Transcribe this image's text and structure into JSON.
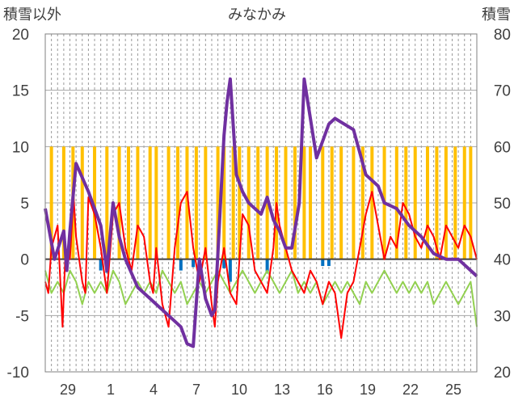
{
  "chart_data": {
    "type": "line",
    "title": "みなかみ",
    "left_axis_label": "積雪以外",
    "right_axis_label": "積雪",
    "ylim_left": [
      -10,
      20
    ],
    "ylim_right": [
      20,
      80
    ],
    "y_ticks_left": [
      "20",
      "15",
      "10",
      "5",
      "0",
      "-5",
      "-10"
    ],
    "y_ticks_right": [
      "80",
      "70",
      "60",
      "50",
      "40",
      "30",
      "20"
    ],
    "x_tick_labels": [
      "29",
      "1",
      "4",
      "7",
      "10",
      "13",
      "16",
      "19",
      "22",
      "25"
    ],
    "grid": "horizontal solid, vertical dashed daily",
    "colors": {
      "snow_depth": "#7030a0",
      "temp_max": "#ff0000",
      "temp_min": "#92d050",
      "precip_bars": "#ffc000",
      "snowfall_neg_bars": "#0070c0"
    },
    "series": [
      {
        "key": "snow_depth",
        "axis": "right",
        "points": [
          [
            0,
            49
          ],
          [
            1.5,
            40
          ],
          [
            3,
            45
          ],
          [
            3.5,
            38
          ],
          [
            4,
            45
          ],
          [
            5,
            57
          ],
          [
            7,
            52
          ],
          [
            9,
            46
          ],
          [
            10,
            38
          ],
          [
            11,
            50
          ],
          [
            12,
            44
          ],
          [
            13,
            40
          ],
          [
            15,
            35
          ],
          [
            17,
            33
          ],
          [
            18,
            32
          ],
          [
            20,
            30
          ],
          [
            22,
            28
          ],
          [
            23,
            25
          ],
          [
            24,
            24.5
          ],
          [
            25,
            40
          ],
          [
            26,
            33
          ],
          [
            27,
            30
          ],
          [
            27.5,
            31
          ],
          [
            28,
            41
          ],
          [
            29,
            62
          ],
          [
            29.5,
            68
          ],
          [
            30,
            72
          ],
          [
            31,
            55
          ],
          [
            32,
            52
          ],
          [
            33,
            50
          ],
          [
            35,
            48
          ],
          [
            36,
            51
          ],
          [
            37,
            47
          ],
          [
            38,
            45
          ],
          [
            39,
            42
          ],
          [
            40,
            42
          ],
          [
            41.2,
            50
          ],
          [
            42,
            72
          ],
          [
            44,
            58
          ],
          [
            46,
            64
          ],
          [
            47,
            65
          ],
          [
            50,
            63
          ],
          [
            52,
            55
          ],
          [
            54,
            53
          ],
          [
            55,
            50
          ],
          [
            57,
            49
          ],
          [
            59,
            46
          ],
          [
            61,
            44
          ],
          [
            63,
            41
          ],
          [
            65,
            40
          ],
          [
            67,
            40
          ],
          [
            69,
            38
          ],
          [
            70,
            37
          ]
        ]
      },
      {
        "key": "temp_max",
        "axis": "left",
        "points": [
          [
            0,
            -2
          ],
          [
            0.5,
            -3
          ],
          [
            1,
            1
          ],
          [
            2,
            3
          ],
          [
            2.8,
            -6
          ],
          [
            3.3,
            1
          ],
          [
            4,
            0
          ],
          [
            4.6,
            5.5
          ],
          [
            5,
            2
          ],
          [
            6,
            -2
          ],
          [
            6.5,
            -3
          ],
          [
            7,
            5.5
          ],
          [
            8,
            4
          ],
          [
            9,
            1
          ],
          [
            10,
            -3
          ],
          [
            11,
            4
          ],
          [
            12,
            5
          ],
          [
            13,
            1
          ],
          [
            14,
            -1
          ],
          [
            15,
            3
          ],
          [
            16,
            2
          ],
          [
            17,
            -2
          ],
          [
            17.5,
            -3
          ],
          [
            18,
            1
          ],
          [
            19,
            -4
          ],
          [
            20,
            -6
          ],
          [
            21,
            1
          ],
          [
            22,
            5
          ],
          [
            23,
            6
          ],
          [
            24,
            1
          ],
          [
            25,
            -2
          ],
          [
            26,
            1
          ],
          [
            27,
            -4
          ],
          [
            27.5,
            -6
          ],
          [
            28,
            -2
          ],
          [
            29,
            1
          ],
          [
            30,
            -3
          ],
          [
            31,
            -4
          ],
          [
            32,
            4
          ],
          [
            33,
            3
          ],
          [
            34,
            -1
          ],
          [
            35,
            -2
          ],
          [
            36,
            -3
          ],
          [
            37,
            1
          ],
          [
            37.5,
            5
          ],
          [
            38,
            3
          ],
          [
            39,
            1
          ],
          [
            40,
            -1
          ],
          [
            41,
            -2
          ],
          [
            42,
            -3
          ],
          [
            43,
            -1
          ],
          [
            44,
            -2
          ],
          [
            45,
            -4
          ],
          [
            46,
            -2
          ],
          [
            47,
            -3
          ],
          [
            48,
            -7
          ],
          [
            49,
            -3
          ],
          [
            50,
            -2
          ],
          [
            51,
            1
          ],
          [
            52,
            4
          ],
          [
            53,
            6
          ],
          [
            54,
            3
          ],
          [
            55,
            0
          ],
          [
            56,
            2
          ],
          [
            57,
            1
          ],
          [
            58,
            5
          ],
          [
            59,
            4
          ],
          [
            60,
            2
          ],
          [
            61,
            1
          ],
          [
            62,
            3
          ],
          [
            63,
            2
          ],
          [
            64,
            0
          ],
          [
            65,
            3
          ],
          [
            66,
            2
          ],
          [
            67,
            1
          ],
          [
            68,
            3
          ],
          [
            69,
            2
          ],
          [
            70,
            0
          ]
        ]
      },
      {
        "key": "temp_min",
        "axis": "left",
        "points": [
          [
            0,
            -1
          ],
          [
            1,
            -3
          ],
          [
            2,
            -2
          ],
          [
            3,
            -3
          ],
          [
            4,
            -1
          ],
          [
            5,
            -2
          ],
          [
            6,
            -4
          ],
          [
            7,
            -2
          ],
          [
            8,
            -3
          ],
          [
            9,
            -2
          ],
          [
            10,
            -3
          ],
          [
            11,
            -1
          ],
          [
            12,
            -2
          ],
          [
            13,
            -4
          ],
          [
            14,
            -3
          ],
          [
            15,
            -2
          ],
          [
            16,
            -3
          ],
          [
            17,
            -2
          ],
          [
            18,
            -3
          ],
          [
            19,
            -1
          ],
          [
            20,
            -2
          ],
          [
            21,
            -3
          ],
          [
            22,
            -2
          ],
          [
            23,
            -4
          ],
          [
            24,
            -3
          ],
          [
            25,
            -2
          ],
          [
            26,
            -3
          ],
          [
            27,
            -2
          ],
          [
            28,
            -1
          ],
          [
            29,
            -2
          ],
          [
            30,
            -3
          ],
          [
            31,
            -2
          ],
          [
            32,
            -1
          ],
          [
            33,
            -2
          ],
          [
            34,
            -3
          ],
          [
            35,
            -2
          ],
          [
            36,
            -1
          ],
          [
            37,
            -2
          ],
          [
            38,
            -3
          ],
          [
            39,
            -2
          ],
          [
            40,
            -1
          ],
          [
            41,
            -3
          ],
          [
            42,
            -2
          ],
          [
            43,
            -3
          ],
          [
            44,
            -2
          ],
          [
            45,
            -4
          ],
          [
            46,
            -3
          ],
          [
            47,
            -2
          ],
          [
            48,
            -3
          ],
          [
            49,
            -2
          ],
          [
            50,
            -3
          ],
          [
            51,
            -4
          ],
          [
            52,
            -2
          ],
          [
            53,
            -3
          ],
          [
            54,
            -2
          ],
          [
            55,
            -1
          ],
          [
            56,
            -2
          ],
          [
            57,
            -3
          ],
          [
            58,
            -2
          ],
          [
            59,
            -3
          ],
          [
            60,
            -2
          ],
          [
            61,
            -3
          ],
          [
            62,
            -2
          ],
          [
            63,
            -4
          ],
          [
            64,
            -3
          ],
          [
            65,
            -2
          ],
          [
            66,
            -3
          ],
          [
            67,
            -4
          ],
          [
            68,
            -3
          ],
          [
            69,
            -2
          ],
          [
            70,
            -6
          ]
        ]
      }
    ],
    "precip_bars_x": [
      1,
      3,
      4.5,
      6,
      8,
      10,
      12,
      13.5,
      15,
      17,
      18,
      20,
      21.5,
      23,
      24.5,
      26,
      28,
      29,
      30.5,
      31.5,
      33,
      34.5,
      36,
      37.5,
      39,
      40.5,
      42,
      43,
      45,
      46.5,
      48,
      50,
      51.5,
      53,
      55,
      57,
      58.5,
      60,
      62,
      63.5,
      65,
      66.5,
      68,
      69
    ],
    "snow_bars": [
      [
        9,
        -1
      ],
      [
        10,
        -1.2
      ],
      [
        22,
        -1
      ],
      [
        24,
        -0.7
      ],
      [
        29,
        -0.8
      ],
      [
        30,
        -2
      ],
      [
        36,
        -1.2
      ],
      [
        45,
        -0.6
      ],
      [
        46,
        -0.6
      ]
    ]
  }
}
